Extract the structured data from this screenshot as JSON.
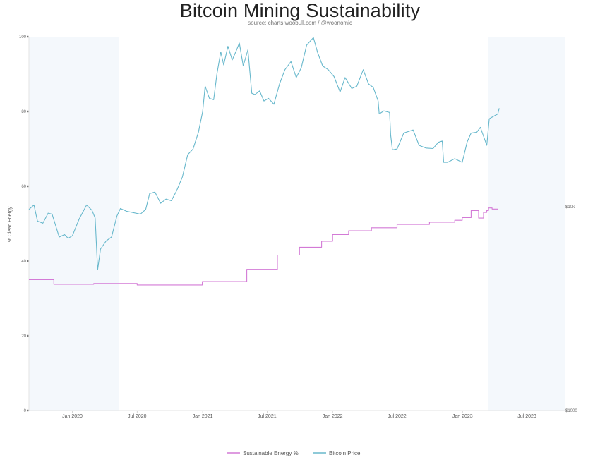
{
  "title": "Bitcoin Mining Sustainability",
  "subtitle": "source: charts.woobull.com / @woonomic",
  "chart_data": {
    "type": "line",
    "title": "Bitcoin Mining Sustainability",
    "subtitle": "source: charts.woobull.com / @woonomic",
    "ylabel": "% Clean Energy",
    "x_ticks": [
      "Jan 2020",
      "Jul 2020",
      "Jan 2021",
      "Jul 2021",
      "Jan 2022",
      "Jul 2022",
      "Jan 2023",
      "Jul 2023"
    ],
    "xlim": [
      "2019-09-01",
      "2023-10-15"
    ],
    "y_left": {
      "ticks": [
        0,
        20,
        40,
        60,
        80,
        100
      ],
      "range": [
        0,
        100
      ]
    },
    "y_right": {
      "ticks": [
        "$1000",
        "$10k"
      ],
      "scale": "log"
    },
    "shaded_regions": [
      [
        "2019-09-01",
        "2020-05-11"
      ],
      [
        "2023-03-15",
        "2023-10-15"
      ]
    ],
    "series": [
      {
        "name": "Sustainable Energy %",
        "color": "#d37ad6",
        "axis": "left",
        "step": true,
        "x": [
          "2019-09-01",
          "2019-11-10",
          "2020-03-01",
          "2020-07-01",
          "2020-12-31",
          "2021-05-05",
          "2021-07-30",
          "2021-09-30",
          "2021-12-01",
          "2022-01-01",
          "2022-02-15",
          "2022-04-20",
          "2022-07-01",
          "2022-09-30",
          "2022-12-10",
          "2022-12-31",
          "2023-01-25",
          "2023-02-15",
          "2023-03-01",
          "2023-03-10",
          "2023-03-15",
          "2023-03-25",
          "2023-04-10"
        ],
        "values": [
          35.0,
          33.8,
          34.0,
          33.6,
          34.5,
          37.8,
          41.6,
          43.7,
          45.3,
          47.1,
          48.1,
          48.9,
          49.8,
          50.4,
          50.9,
          51.6,
          53.5,
          51.5,
          53.0,
          53.5,
          54.2,
          53.9,
          53.7
        ]
      },
      {
        "name": "Bitcoin Price",
        "color": "#68b8cc",
        "axis": "right",
        "x": [
          "2019-09-01",
          "2019-09-15",
          "2019-09-25",
          "2019-10-10",
          "2019-10-25",
          "2019-11-05",
          "2019-11-25",
          "2019-12-10",
          "2019-12-20",
          "2020-01-01",
          "2020-01-20",
          "2020-02-10",
          "2020-02-25",
          "2020-03-05",
          "2020-03-12",
          "2020-03-20",
          "2020-04-05",
          "2020-04-20",
          "2020-05-05",
          "2020-05-15",
          "2020-06-01",
          "2020-06-15",
          "2020-07-10",
          "2020-07-25",
          "2020-08-05",
          "2020-08-20",
          "2020-09-05",
          "2020-09-20",
          "2020-10-05",
          "2020-10-20",
          "2020-11-05",
          "2020-11-20",
          "2020-12-05",
          "2020-12-20",
          "2021-01-01",
          "2021-01-08",
          "2021-01-20",
          "2021-02-01",
          "2021-02-10",
          "2021-02-21",
          "2021-03-01",
          "2021-03-13",
          "2021-03-25",
          "2021-04-05",
          "2021-04-14",
          "2021-04-25",
          "2021-05-08",
          "2021-05-19",
          "2021-05-28",
          "2021-06-10",
          "2021-06-22",
          "2021-07-05",
          "2021-07-20",
          "2021-08-05",
          "2021-08-20",
          "2021-09-06",
          "2021-09-21",
          "2021-10-05",
          "2021-10-20",
          "2021-11-08",
          "2021-11-20",
          "2021-12-04",
          "2021-12-20",
          "2022-01-05",
          "2022-01-22",
          "2022-02-05",
          "2022-02-24",
          "2022-03-10",
          "2022-03-28",
          "2022-04-12",
          "2022-04-25",
          "2022-05-09",
          "2022-05-12",
          "2022-05-25",
          "2022-06-10",
          "2022-06-13",
          "2022-06-18",
          "2022-07-01",
          "2022-07-20",
          "2022-08-15",
          "2022-09-01",
          "2022-09-20",
          "2022-10-10",
          "2022-10-25",
          "2022-11-05",
          "2022-11-09",
          "2022-11-20",
          "2022-12-10",
          "2022-12-31",
          "2023-01-14",
          "2023-01-25",
          "2023-02-10",
          "2023-02-20",
          "2023-03-10",
          "2023-03-17",
          "2023-03-25",
          "2023-04-10",
          "2023-04-14"
        ],
        "values": [
          9700,
          10200,
          8500,
          8300,
          9300,
          9200,
          7100,
          7300,
          7000,
          7200,
          8700,
          10200,
          9600,
          8800,
          4900,
          6200,
          6800,
          7100,
          9000,
          9800,
          9500,
          9400,
          9200,
          9700,
          11600,
          11800,
          10400,
          10900,
          10700,
          12000,
          14000,
          18000,
          19200,
          23200,
          29300,
          39000,
          34000,
          33500,
          44800,
          57500,
          49600,
          61200,
          52500,
          58000,
          63500,
          49000,
          58800,
          36000,
          35500,
          37000,
          33000,
          34000,
          31800,
          40000,
          47000,
          51500,
          43000,
          48000,
          62000,
          67500,
          57000,
          49000,
          47000,
          43500,
          36500,
          43000,
          38000,
          39000,
          47000,
          40000,
          38500,
          33000,
          28500,
          29500,
          29000,
          22500,
          19000,
          19200,
          23000,
          23800,
          20000,
          19400,
          19300,
          20700,
          21000,
          16500,
          16500,
          17200,
          16500,
          20800,
          23000,
          23200,
          24500,
          20000,
          27000,
          27500,
          28500,
          30400
        ]
      }
    ],
    "legend": [
      "Sustainable Energy %",
      "Bitcoin Price"
    ],
    "legend_position": "bottom"
  }
}
